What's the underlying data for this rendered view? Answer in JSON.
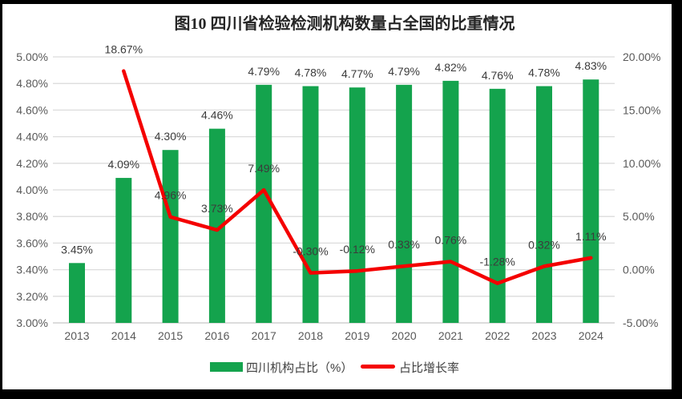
{
  "figure": {
    "title": "图10  四川省检验检测机构数量占全国的比重情况"
  },
  "legend": {
    "bar_label": "四川机构占比（%）",
    "line_label": "占比增长率"
  },
  "colors": {
    "bar": "#14A34D",
    "line": "#F40000",
    "grid": "#DCDCDC",
    "axis_line": "#C6C6C6",
    "axis_text": "#595959",
    "data_label_text": "#3B3B3B",
    "frame": "#000000"
  },
  "chart_data": {
    "type": "bar+line",
    "title": "图10  四川省检验检测机构数量占全国的比重情况",
    "categories": [
      "2013",
      "2014",
      "2015",
      "2016",
      "2017",
      "2018",
      "2019",
      "2020",
      "2021",
      "2022",
      "2023",
      "2024"
    ],
    "series": [
      {
        "name": "四川机构占比（%）",
        "type": "bar",
        "axis": "left",
        "color": "#14A34D",
        "values": [
          3.45,
          4.09,
          4.3,
          4.46,
          4.79,
          4.78,
          4.77,
          4.79,
          4.82,
          4.76,
          4.78,
          4.83
        ],
        "data_labels": [
          "3.45%",
          "4.09%",
          "4.30%",
          "4.46%",
          "4.79%",
          "4.78%",
          "4.77%",
          "4.79%",
          "4.82%",
          "4.76%",
          "4.78%",
          "4.83%"
        ]
      },
      {
        "name": "占比增长率",
        "type": "line",
        "axis": "right",
        "color": "#F40000",
        "values": [
          null,
          18.67,
          4.96,
          3.73,
          7.49,
          -0.3,
          -0.12,
          0.33,
          0.76,
          -1.28,
          0.32,
          1.11
        ],
        "data_labels": [
          null,
          "18.67%",
          "4.96%",
          "3.73%",
          "7.49%",
          "-0.30%",
          "-0.12%",
          "0.33%",
          "0.76%",
          "-1.28%",
          "0.32%",
          "1.11%"
        ]
      }
    ],
    "left_axis": {
      "min": 3.0,
      "max": 5.0,
      "step": 0.2,
      "ticks": [
        "5.00%",
        "4.80%",
        "4.60%",
        "4.40%",
        "4.20%",
        "4.00%",
        "3.80%",
        "3.60%",
        "3.40%",
        "3.20%",
        "3.00%"
      ]
    },
    "right_axis": {
      "min": -5.0,
      "max": 20.0,
      "step": 5.0,
      "ticks": [
        "20.00%",
        "15.00%",
        "10.00%",
        "5.00%",
        "0.00%",
        "-5.00%"
      ]
    },
    "grid": "horizontal",
    "legend_position": "bottom-center"
  }
}
